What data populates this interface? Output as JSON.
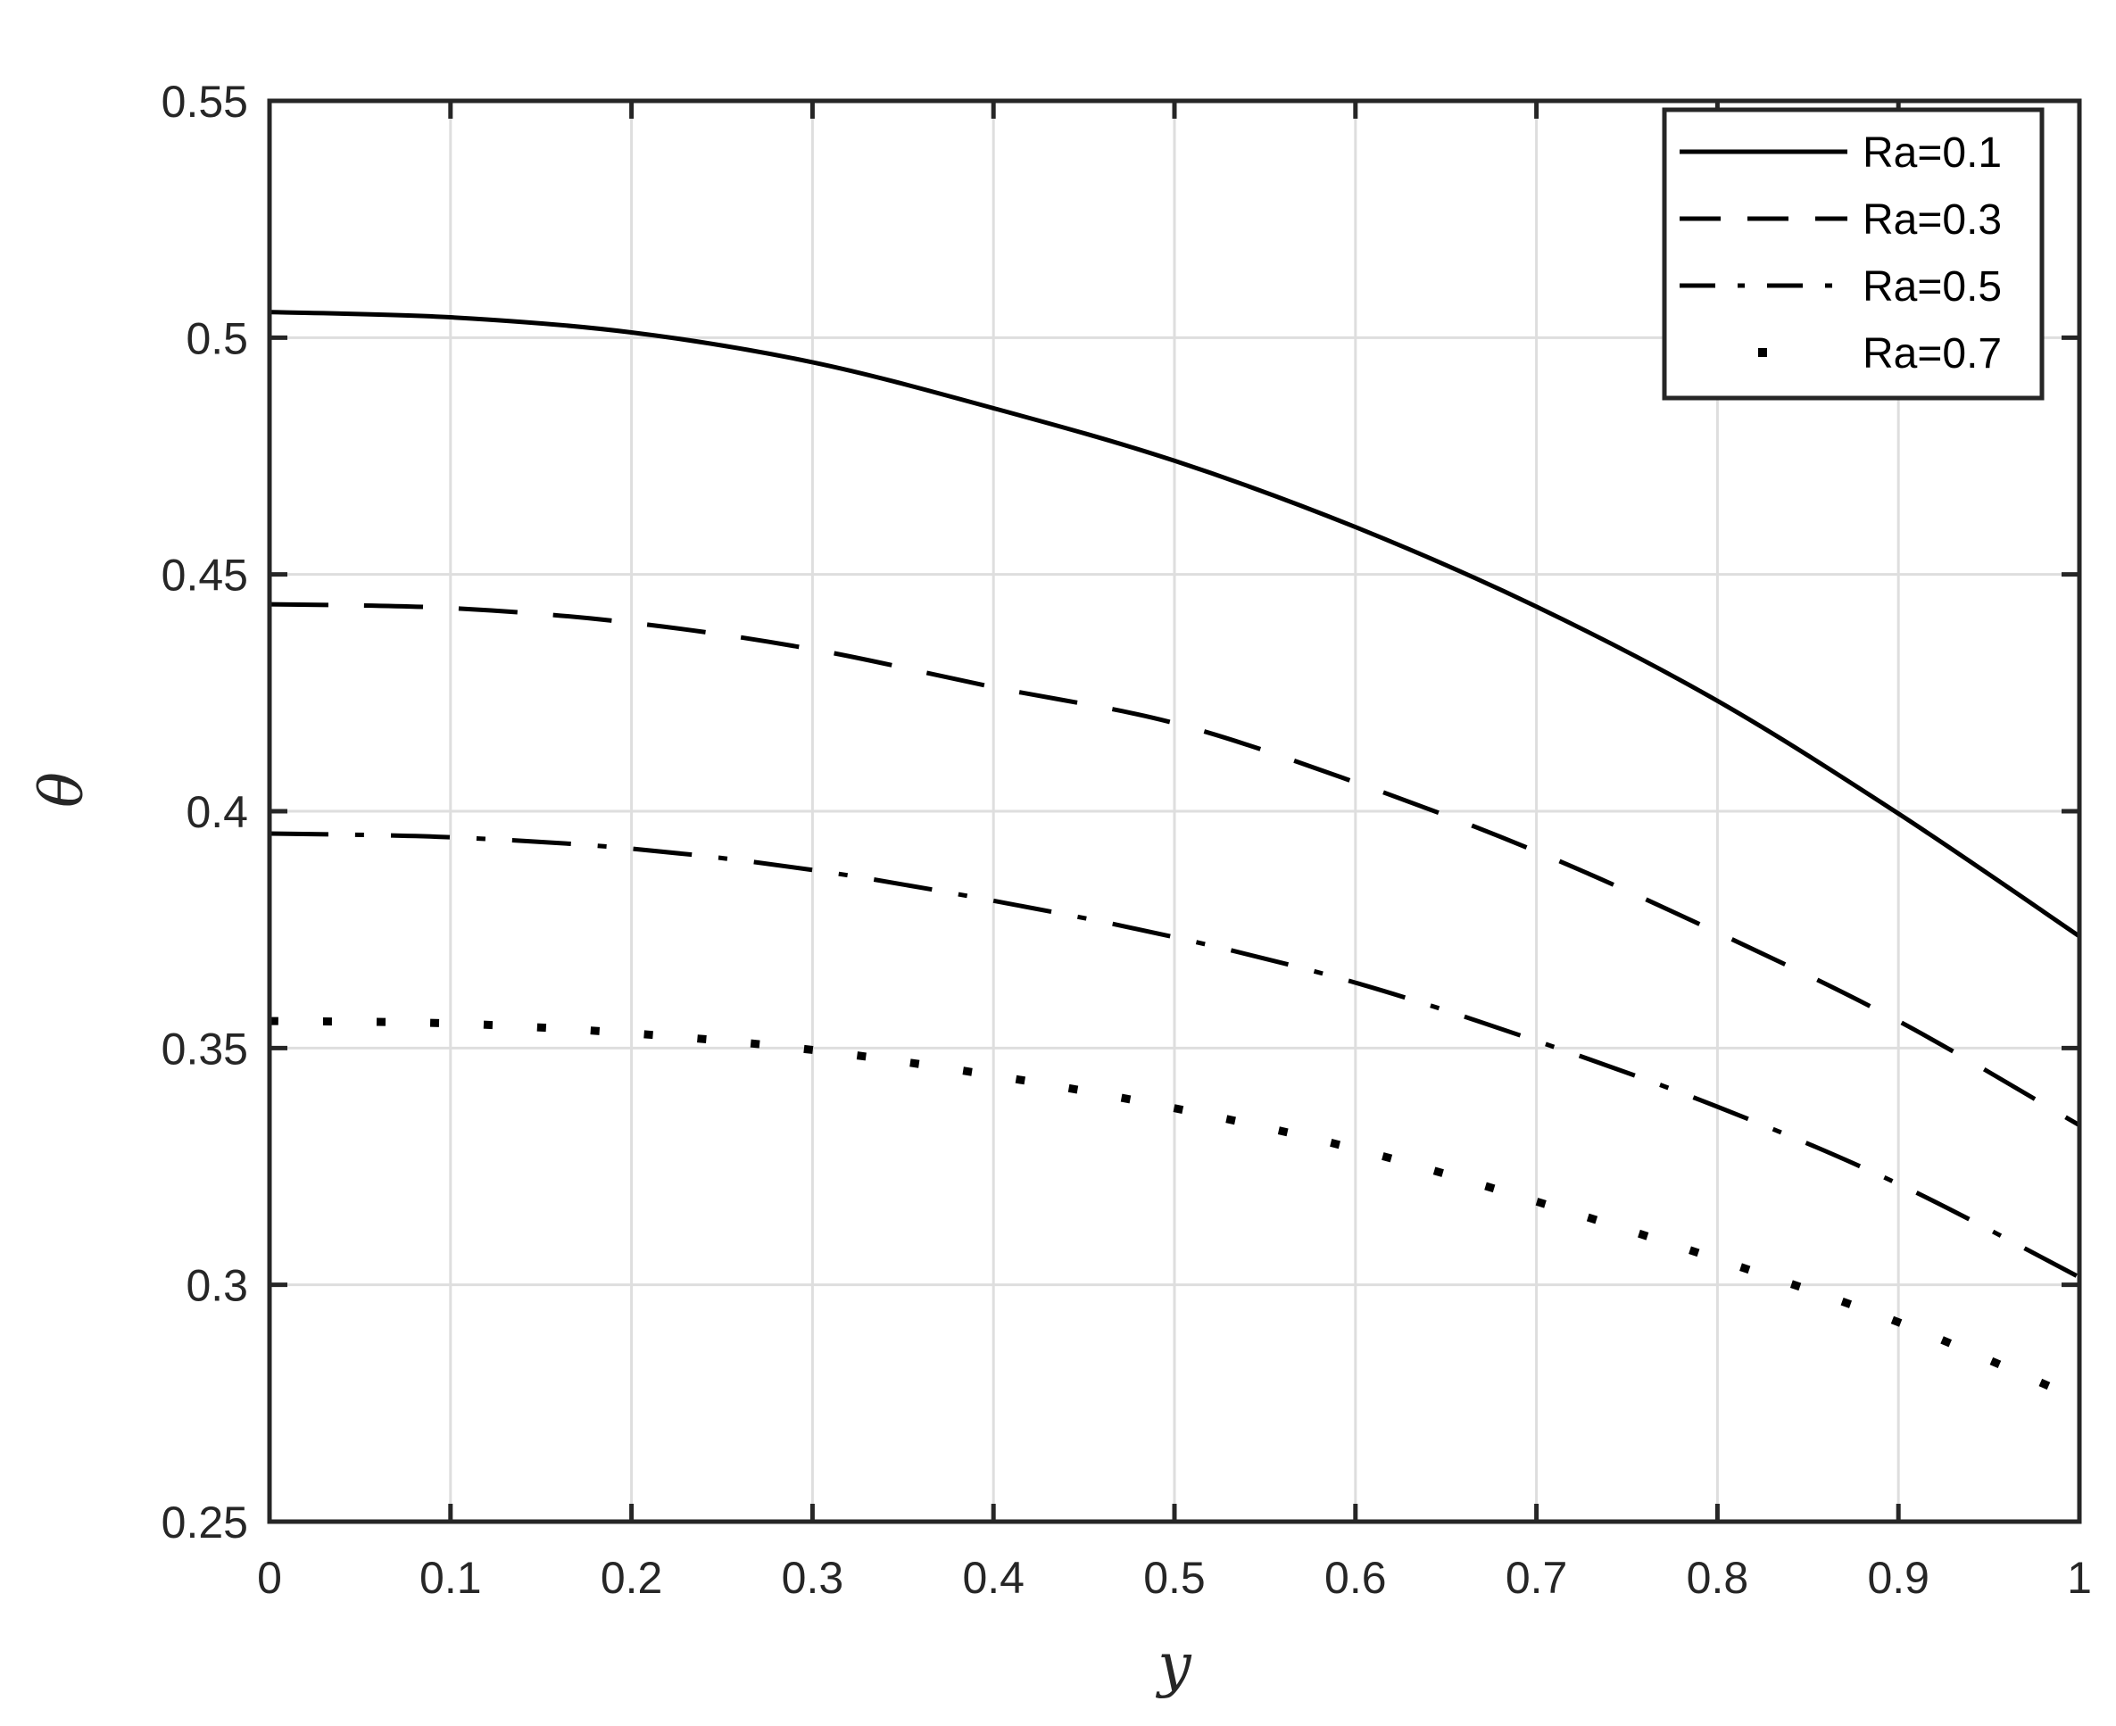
{
  "chart_data": {
    "type": "line",
    "title": "",
    "xlabel": "y",
    "ylabel": "θ",
    "xlim": [
      0,
      1
    ],
    "ylim": [
      0.25,
      0.55
    ],
    "grid": true,
    "legend_position": "upper right",
    "x_ticks": [
      "0",
      "0.1",
      "0.2",
      "0.3",
      "0.4",
      "0.5",
      "0.6",
      "0.7",
      "0.8",
      "0.9",
      "1"
    ],
    "y_ticks": [
      "0.25",
      "0.3",
      "0.35",
      "0.4",
      "0.45",
      "0.5",
      "0.55"
    ],
    "x": [
      0,
      0.1,
      0.2,
      0.3,
      0.4,
      0.5,
      0.6,
      0.7,
      0.8,
      0.9,
      1.0
    ],
    "series": [
      {
        "name": "Ra=0.1",
        "style": "solid",
        "values": [
          0.5054,
          0.5043,
          0.5011,
          0.4948,
          0.4851,
          0.474,
          0.46,
          0.4432,
          0.4233,
          0.3995,
          0.3736
        ]
      },
      {
        "name": "Ra=0.3",
        "style": "dashed",
        "values": [
          0.4437,
          0.4429,
          0.4398,
          0.4342,
          0.4262,
          0.4186,
          0.4061,
          0.3915,
          0.3744,
          0.3557,
          0.3337
        ]
      },
      {
        "name": "Ra=0.5",
        "style": "dash-dot",
        "values": [
          0.3953,
          0.3945,
          0.3921,
          0.3876,
          0.3811,
          0.3734,
          0.3638,
          0.3515,
          0.3376,
          0.3213,
          0.3016
        ]
      },
      {
        "name": "Ra=0.7",
        "style": "dotted",
        "values": [
          0.3557,
          0.3552,
          0.3531,
          0.3496,
          0.3442,
          0.3373,
          0.3287,
          0.3176,
          0.3054,
          0.2921,
          0.2758
        ]
      }
    ]
  },
  "colors": {
    "line": "#000000",
    "axis": "#262626",
    "grid": "#dedede",
    "background": "#ffffff"
  }
}
